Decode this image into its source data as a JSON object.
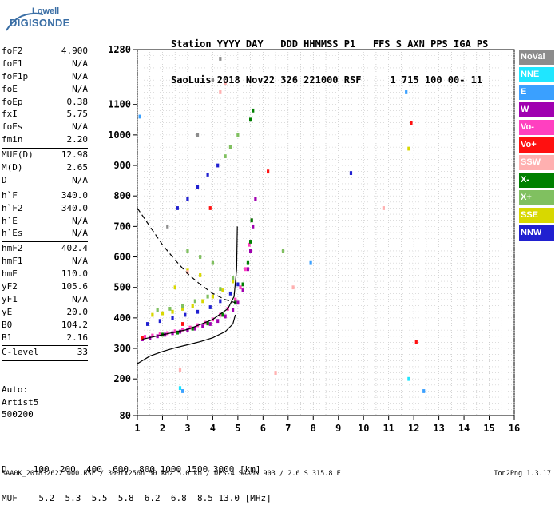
{
  "logo": {
    "line1": "Lowell",
    "line2": "DIGISONDE"
  },
  "header": {
    "line1": "Station YYYY DAY   DDD HHMMSS P1   FFS S AXN PPS IGA PS",
    "line2": "SaoLuis 2018 Nov22 326 221000 RSF     1 715 100 00- 11"
  },
  "params": [
    {
      "name": "foF2",
      "value": "4.900"
    },
    {
      "name": "foF1",
      "value": "N/A"
    },
    {
      "name": "foF1p",
      "value": "N/A"
    },
    {
      "name": "foE",
      "value": "N/A"
    },
    {
      "name": "foEp",
      "value": "0.38"
    },
    {
      "name": "fxI",
      "value": "5.75"
    },
    {
      "name": "foEs",
      "value": "N/A"
    },
    {
      "name": "fmin",
      "value": "2.20"
    },
    {
      "sep": true
    },
    {
      "name": "MUF(D)",
      "value": "12.98"
    },
    {
      "name": "M(D)",
      "value": "2.65"
    },
    {
      "name": "D",
      "value": "N/A"
    },
    {
      "sep": true
    },
    {
      "name": "h`F",
      "value": "340.0"
    },
    {
      "name": "h`F2",
      "value": "340.0"
    },
    {
      "name": "h`E",
      "value": "N/A"
    },
    {
      "name": "h`Es",
      "value": "N/A"
    },
    {
      "sep": true
    },
    {
      "name": "hmF2",
      "value": "402.4"
    },
    {
      "name": "hmF1",
      "value": "N/A"
    },
    {
      "name": "hmE",
      "value": "110.0"
    },
    {
      "name": "yF2",
      "value": "105.6"
    },
    {
      "name": "yF1",
      "value": "N/A"
    },
    {
      "name": "yE",
      "value": "20.0"
    },
    {
      "name": "B0",
      "value": "104.2"
    },
    {
      "name": "B1",
      "value": "2.16"
    },
    {
      "sep": true
    },
    {
      "name": "C-level",
      "value": "33"
    },
    {
      "sep": true
    }
  ],
  "auto": {
    "line1": "Auto:",
    "line2": "Artist5",
    "line3": "500200"
  },
  "legend": [
    {
      "label": "NoVal",
      "color": "#8c8c8c"
    },
    {
      "label": "NNE",
      "color": "#1fe6ff"
    },
    {
      "label": "E",
      "color": "#3aa0ff"
    },
    {
      "label": "W",
      "color": "#a000b0"
    },
    {
      "label": "Vo-",
      "color": "#ff40c0"
    },
    {
      "label": "Vo+",
      "color": "#ff1010"
    },
    {
      "label": "SSW",
      "color": "#ffb0b0"
    },
    {
      "label": "X-",
      "color": "#008000"
    },
    {
      "label": "X+",
      "color": "#80c060"
    },
    {
      "label": "SSE",
      "color": "#d8d800"
    },
    {
      "label": "NNW",
      "color": "#2020d0"
    }
  ],
  "muf_table": {
    "d_row": "D     100  200  400  600  800 1000 1500 3000 [km]",
    "muf_row": "MUF    5.2  5.3  5.5  5.8  6.2  6.8  8.5 13.0 [MHz]"
  },
  "footer": {
    "text": "SAA0K_2018326221000.RSF / 300fx256h 50 kHz 5.0 km / DPS-4 SAA0K 903 / 2.6 S 315.8 E",
    "version": "Ion2Png 1.3.17"
  },
  "chart_data": {
    "type": "scatter",
    "xlim": [
      1,
      16
    ],
    "xticks": [
      1,
      2,
      3,
      4,
      5,
      6,
      7,
      8,
      9,
      10,
      11,
      12,
      13,
      14,
      15,
      16
    ],
    "ylim": [
      80,
      1280
    ],
    "yticks": [
      80,
      200,
      300,
      400,
      500,
      600,
      700,
      800,
      900,
      1000,
      1100,
      1280
    ],
    "grid": true,
    "series": [
      {
        "color": "#a000b0",
        "points": [
          [
            1.2,
            330
          ],
          [
            1.5,
            335
          ],
          [
            1.8,
            340
          ],
          [
            2.1,
            345
          ],
          [
            2.4,
            350
          ],
          [
            2.7,
            355
          ],
          [
            3.0,
            360
          ],
          [
            3.3,
            365
          ],
          [
            3.6,
            372
          ],
          [
            3.9,
            380
          ],
          [
            4.2,
            390
          ],
          [
            4.5,
            405
          ],
          [
            4.8,
            425
          ],
          [
            5.0,
            450
          ],
          [
            5.2,
            490
          ],
          [
            5.4,
            560
          ],
          [
            5.5,
            620
          ],
          [
            5.6,
            700
          ],
          [
            5.7,
            790
          ]
        ]
      },
      {
        "color": "#ff40c0",
        "points": [
          [
            1.3,
            338
          ],
          [
            1.6,
            342
          ],
          [
            1.9,
            346
          ],
          [
            2.2,
            350
          ],
          [
            2.5,
            356
          ],
          [
            2.8,
            362
          ],
          [
            3.1,
            368
          ],
          [
            3.4,
            376
          ],
          [
            3.7,
            384
          ],
          [
            4.0,
            395
          ],
          [
            4.3,
            410
          ],
          [
            4.6,
            430
          ],
          [
            4.9,
            460
          ],
          [
            5.1,
            500
          ],
          [
            5.3,
            560
          ],
          [
            5.45,
            640
          ],
          [
            5.55,
            720
          ]
        ]
      },
      {
        "color": "#008000",
        "points": [
          [
            2.0,
            345
          ],
          [
            2.6,
            352
          ],
          [
            3.2,
            365
          ],
          [
            3.8,
            382
          ],
          [
            4.4,
            410
          ],
          [
            4.9,
            450
          ],
          [
            5.2,
            510
          ],
          [
            5.4,
            580
          ],
          [
            5.5,
            650
          ],
          [
            5.55,
            720
          ],
          [
            5.6,
            1080
          ],
          [
            5.5,
            1050
          ]
        ]
      },
      {
        "color": "#2020d0",
        "points": [
          [
            1.4,
            380
          ],
          [
            1.9,
            390
          ],
          [
            2.4,
            400
          ],
          [
            2.9,
            410
          ],
          [
            3.4,
            420
          ],
          [
            3.9,
            435
          ],
          [
            4.3,
            455
          ],
          [
            4.7,
            480
          ],
          [
            5.0,
            510
          ],
          [
            2.6,
            760
          ],
          [
            3.0,
            790
          ],
          [
            3.4,
            830
          ],
          [
            3.8,
            870
          ],
          [
            4.2,
            900
          ],
          [
            9.5,
            875
          ]
        ]
      },
      {
        "color": "#d8d800",
        "points": [
          [
            1.6,
            410
          ],
          [
            2.0,
            415
          ],
          [
            2.4,
            420
          ],
          [
            2.8,
            430
          ],
          [
            3.2,
            440
          ],
          [
            3.6,
            455
          ],
          [
            4.0,
            470
          ],
          [
            4.4,
            490
          ],
          [
            4.8,
            520
          ],
          [
            3.0,
            555
          ],
          [
            3.5,
            540
          ],
          [
            2.5,
            500
          ],
          [
            11.8,
            955
          ]
        ]
      },
      {
        "color": "#80c060",
        "points": [
          [
            1.8,
            425
          ],
          [
            2.3,
            430
          ],
          [
            2.8,
            440
          ],
          [
            3.3,
            455
          ],
          [
            3.8,
            470
          ],
          [
            4.3,
            495
          ],
          [
            4.8,
            530
          ],
          [
            3.0,
            620
          ],
          [
            3.5,
            600
          ],
          [
            4.0,
            580
          ],
          [
            4.5,
            930
          ],
          [
            4.7,
            960
          ],
          [
            5.0,
            1000
          ],
          [
            6.8,
            620
          ]
        ]
      },
      {
        "color": "#ff1010",
        "points": [
          [
            1.2,
            335
          ],
          [
            2.8,
            380
          ],
          [
            3.9,
            760
          ],
          [
            6.2,
            880
          ],
          [
            11.9,
            1040
          ],
          [
            12.1,
            320
          ]
        ]
      },
      {
        "color": "#ffb0b0",
        "points": [
          [
            2.7,
            230
          ],
          [
            3.0,
            550
          ],
          [
            4.3,
            1140
          ],
          [
            4.5,
            1170
          ],
          [
            6.5,
            220
          ],
          [
            7.2,
            500
          ],
          [
            10.8,
            760
          ]
        ]
      },
      {
        "color": "#3aa0ff",
        "points": [
          [
            1.1,
            1060
          ],
          [
            2.8,
            160
          ],
          [
            7.9,
            580
          ],
          [
            11.7,
            1140
          ],
          [
            12.4,
            160
          ]
        ]
      },
      {
        "color": "#1fe6ff",
        "points": [
          [
            2.7,
            170
          ],
          [
            11.8,
            200
          ]
        ]
      },
      {
        "color": "#8c8c8c",
        "points": [
          [
            2.2,
            700
          ],
          [
            3.4,
            1000
          ],
          [
            4.0,
            1180
          ],
          [
            4.3,
            1250
          ]
        ]
      }
    ]
  }
}
